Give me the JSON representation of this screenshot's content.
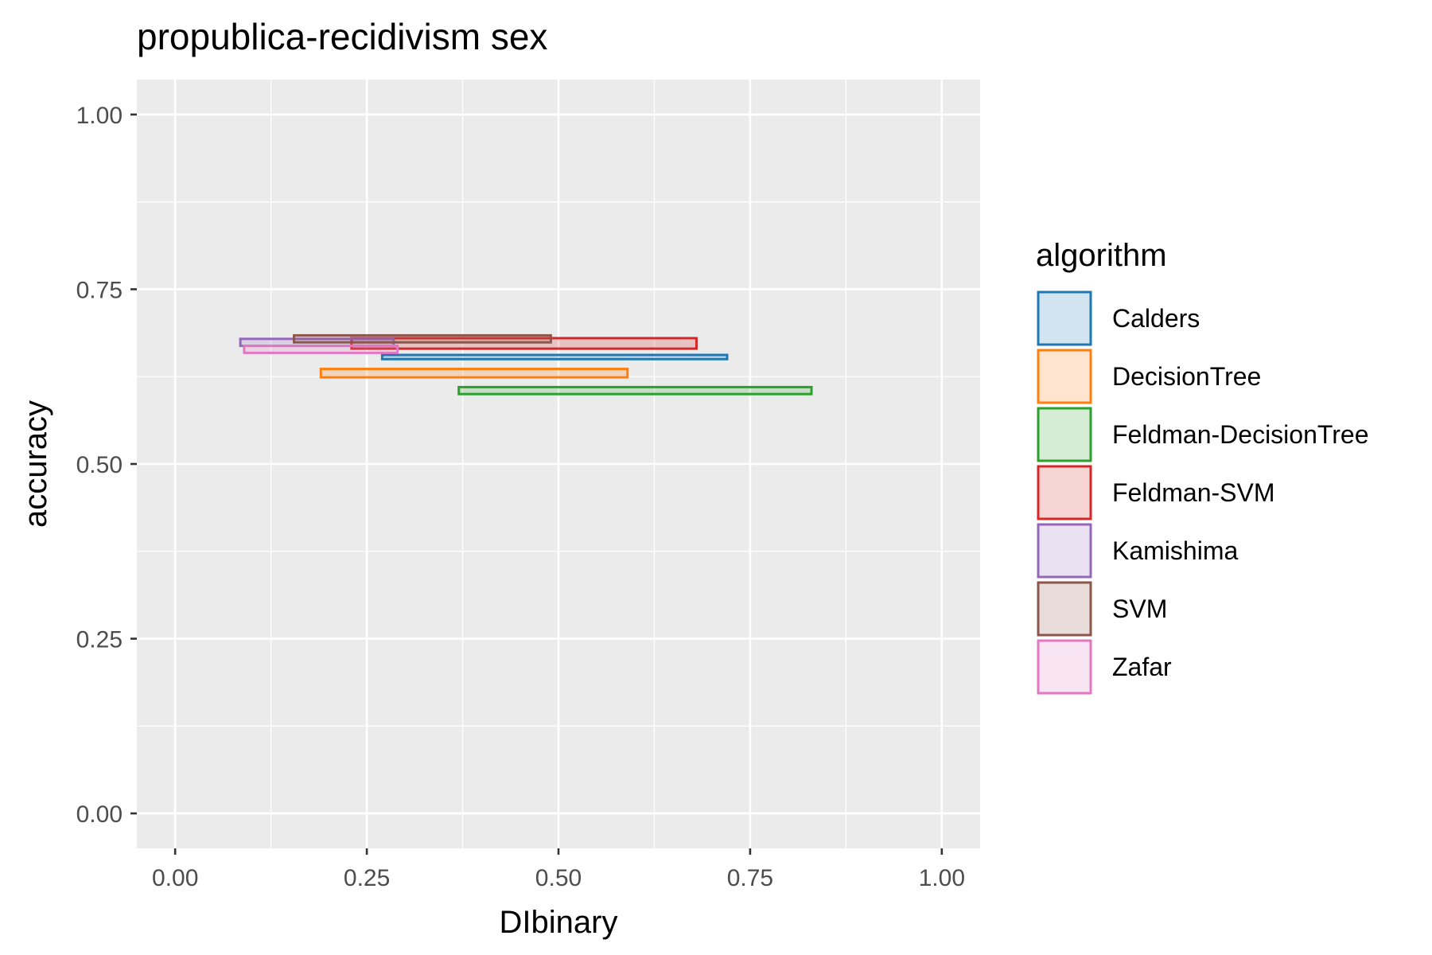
{
  "chart_data": {
    "type": "rect",
    "title": "propublica-recidivism sex",
    "xlabel": "DIbinary",
    "ylabel": "accuracy",
    "xlim": [
      -0.05,
      1.05
    ],
    "ylim": [
      -0.05,
      1.05
    ],
    "x_ticks": [
      0.0,
      0.25,
      0.5,
      0.75,
      1.0
    ],
    "x_tick_labels": [
      "0.00",
      "0.25",
      "0.50",
      "0.75",
      "1.00"
    ],
    "y_ticks": [
      0.0,
      0.25,
      0.5,
      0.75,
      1.0
    ],
    "y_tick_labels": [
      "0.00",
      "0.25",
      "0.50",
      "0.75",
      "1.00"
    ],
    "grid": true,
    "legend": {
      "title": "algorithm",
      "position": "right"
    },
    "series": [
      {
        "name": "Calders",
        "color": "#1f77b4",
        "x": [
          0.27,
          0.72
        ],
        "y": [
          0.65,
          0.656
        ]
      },
      {
        "name": "DecisionTree",
        "color": "#ff7f0e",
        "x": [
          0.19,
          0.59
        ],
        "y": [
          0.624,
          0.636
        ]
      },
      {
        "name": "Feldman-DecisionTree",
        "color": "#2ca02c",
        "x": [
          0.37,
          0.83
        ],
        "y": [
          0.6,
          0.61
        ]
      },
      {
        "name": "Feldman-SVM",
        "color": "#d62728",
        "x": [
          0.23,
          0.68
        ],
        "y": [
          0.665,
          0.68
        ]
      },
      {
        "name": "Kamishima",
        "color": "#9467bd",
        "x": [
          0.085,
          0.285
        ],
        "y": [
          0.669,
          0.679
        ]
      },
      {
        "name": "SVM",
        "color": "#8c564b",
        "x": [
          0.155,
          0.49
        ],
        "y": [
          0.674,
          0.684
        ]
      },
      {
        "name": "Zafar",
        "color": "#e377c2",
        "x": [
          0.09,
          0.29
        ],
        "y": [
          0.659,
          0.669
        ]
      }
    ]
  }
}
